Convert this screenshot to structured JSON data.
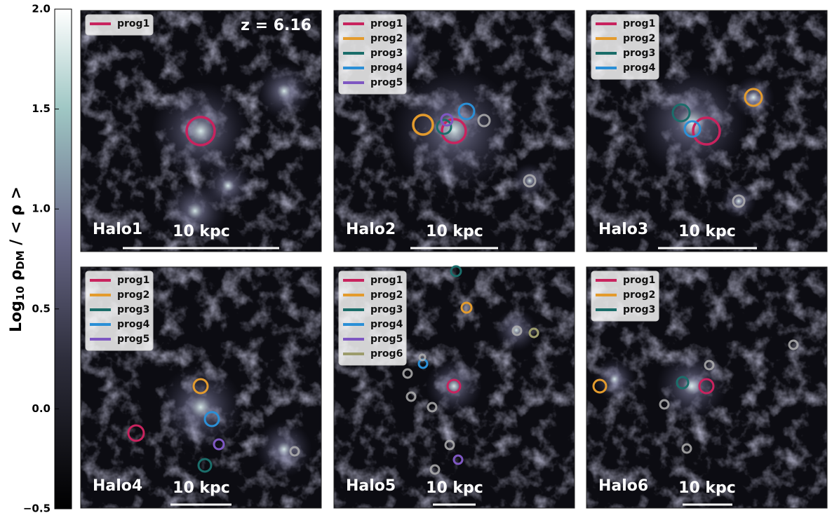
{
  "colorbar": {
    "label_parts": [
      "Log",
      "10",
      " ρ",
      "DM",
      " / < ρ >"
    ],
    "lim": [
      -0.5,
      2.0
    ],
    "ticks": [
      {
        "value": -0.5,
        "label": "−0.5"
      },
      {
        "value": 0.0,
        "label": "0.0"
      },
      0.5,
      {
        "value": 1.0,
        "label": "1.0"
      },
      1.5,
      {
        "value": 2.0,
        "label": "2.0"
      }
    ]
  },
  "annotation": "z = 6.16",
  "panels": [
    {
      "label": "Halo1",
      "scale_label": "10 kpc",
      "legend": [
        {
          "name": "prog1",
          "color": "#c8235e"
        }
      ]
    },
    {
      "label": "Halo2",
      "scale_label": "10 kpc",
      "legend": [
        {
          "name": "prog1",
          "color": "#c8235e"
        },
        {
          "name": "prog2",
          "color": "#e39b2d"
        },
        {
          "name": "prog3",
          "color": "#1b6d6a"
        },
        {
          "name": "prog4",
          "color": "#2b8fd6"
        },
        {
          "name": "prog5",
          "color": "#7e57c2"
        }
      ]
    },
    {
      "label": "Halo3",
      "scale_label": "10 kpc",
      "legend": [
        {
          "name": "prog1",
          "color": "#c8235e"
        },
        {
          "name": "prog2",
          "color": "#e39b2d"
        },
        {
          "name": "prog3",
          "color": "#1b6d6a"
        },
        {
          "name": "prog4",
          "color": "#2b8fd6"
        }
      ]
    },
    {
      "label": "Halo4",
      "scale_label": "10 kpc",
      "legend": [
        {
          "name": "prog1",
          "color": "#c8235e"
        },
        {
          "name": "prog2",
          "color": "#e39b2d"
        },
        {
          "name": "prog3",
          "color": "#1b6d6a"
        },
        {
          "name": "prog4",
          "color": "#2b8fd6"
        },
        {
          "name": "prog5",
          "color": "#7e57c2"
        }
      ]
    },
    {
      "label": "Halo5",
      "scale_label": "10 kpc",
      "legend": [
        {
          "name": "prog1",
          "color": "#c8235e"
        },
        {
          "name": "prog2",
          "color": "#e39b2d"
        },
        {
          "name": "prog3",
          "color": "#1b6d6a"
        },
        {
          "name": "prog4",
          "color": "#2b8fd6"
        },
        {
          "name": "prog5",
          "color": "#7e57c2"
        },
        {
          "name": "prog6",
          "color": "#9c9c6c"
        }
      ]
    },
    {
      "label": "Halo6",
      "scale_label": "10 kpc",
      "legend": [
        {
          "name": "prog1",
          "color": "#c8235e"
        },
        {
          "name": "prog2",
          "color": "#e39b2d"
        },
        {
          "name": "prog3",
          "color": "#1b6d6a"
        }
      ]
    }
  ]
}
